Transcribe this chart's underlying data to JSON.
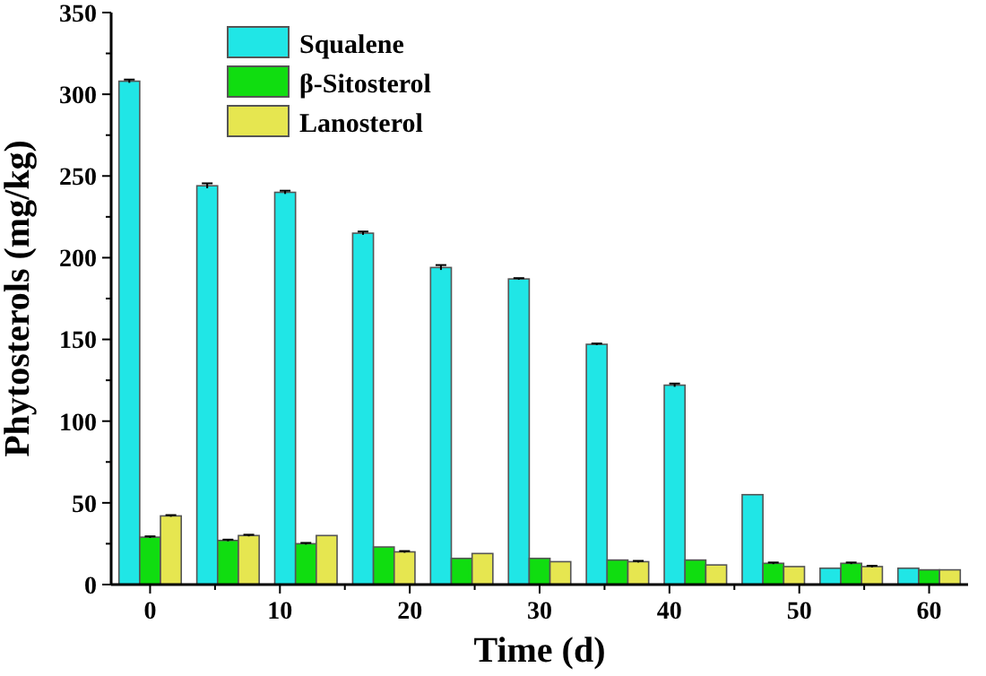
{
  "chart_data": {
    "type": "bar",
    "xlabel": "Time (d)",
    "ylabel": "Phytosterols (mg/kg)",
    "x": [
      0,
      6,
      12,
      18,
      24,
      30,
      36,
      42,
      48,
      54,
      60
    ],
    "series": [
      {
        "name": "Squalene",
        "color": "#20e6e6",
        "values": [
          308,
          244,
          240,
          215,
          194,
          187,
          147,
          122,
          55,
          10,
          10
        ],
        "errors": [
          1,
          1.5,
          1,
          1,
          1.5,
          0.5,
          0.5,
          1,
          null,
          null,
          null
        ]
      },
      {
        "name": "β-Sitosterol",
        "color": "#10dd10",
        "values": [
          29,
          27,
          25,
          23,
          16,
          16,
          15,
          15,
          13,
          13,
          9
        ],
        "errors": [
          0.5,
          0.5,
          0.5,
          null,
          null,
          null,
          null,
          null,
          0.5,
          0.5,
          null
        ]
      },
      {
        "name": "Lanosterol",
        "color": "#e6e650",
        "values": [
          42,
          30,
          30,
          20,
          19,
          14,
          14,
          12,
          11,
          11,
          9
        ],
        "errors": [
          0.5,
          0.5,
          null,
          0.5,
          null,
          null,
          0.5,
          null,
          null,
          0.5,
          null
        ]
      }
    ],
    "xlim": [
      -3,
      63
    ],
    "xticks": [
      0,
      {
        "value": 5,
        "label": null
      },
      10,
      {
        "value": 15,
        "label": null
      },
      20,
      {
        "value": 25,
        "label": null
      },
      30,
      {
        "value": 35,
        "label": null
      },
      40,
      {
        "value": 45,
        "label": null
      },
      50,
      {
        "value": 55,
        "label": null
      },
      60
    ],
    "ylim": [
      0,
      350
    ],
    "yticks": [
      0,
      {
        "value": 25,
        "label": null
      },
      50,
      {
        "value": 75,
        "label": null
      },
      100,
      {
        "value": 125,
        "label": null
      },
      150,
      {
        "value": 175,
        "label": null
      },
      200,
      {
        "value": 225,
        "label": null
      },
      250,
      {
        "value": 275,
        "label": null
      },
      300,
      {
        "value": 325,
        "label": null
      },
      350
    ],
    "legend": "top left"
  }
}
